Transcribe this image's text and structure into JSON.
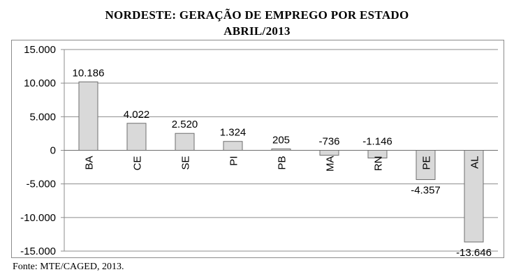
{
  "chart_data": {
    "type": "bar",
    "title": "NORDESTE: GERAÇÃO DE EMPREGO POR ESTADO",
    "subtitle": "ABRIL/2013",
    "categories": [
      "BA",
      "CE",
      "SE",
      "PI",
      "PB",
      "MA",
      "RN",
      "PE",
      "AL"
    ],
    "values": [
      10186,
      4022,
      2520,
      1324,
      205,
      -736,
      -1146,
      -4357,
      -13646
    ],
    "value_labels": [
      "10.186",
      "4.022",
      "2.520",
      "1.324",
      "205",
      "-736",
      "-1.146",
      "-4.357",
      "-13.646"
    ],
    "y_ticks": [
      15000,
      10000,
      5000,
      0,
      -5000,
      -10000,
      -15000
    ],
    "y_tick_labels": [
      "15.000",
      "10.000",
      "5.000",
      "0",
      "-5.000",
      "-10.000",
      "-15.000"
    ],
    "ylim": [
      -15000,
      15000
    ],
    "grid": true,
    "legend": "none",
    "xlabel": "",
    "ylabel": "",
    "bar_color": "#d9d9d9",
    "bar_stroke": "#6e6e6e",
    "grid_color": "#8c8c8c"
  },
  "source": "Fonte: MTE/CAGED, 2013."
}
